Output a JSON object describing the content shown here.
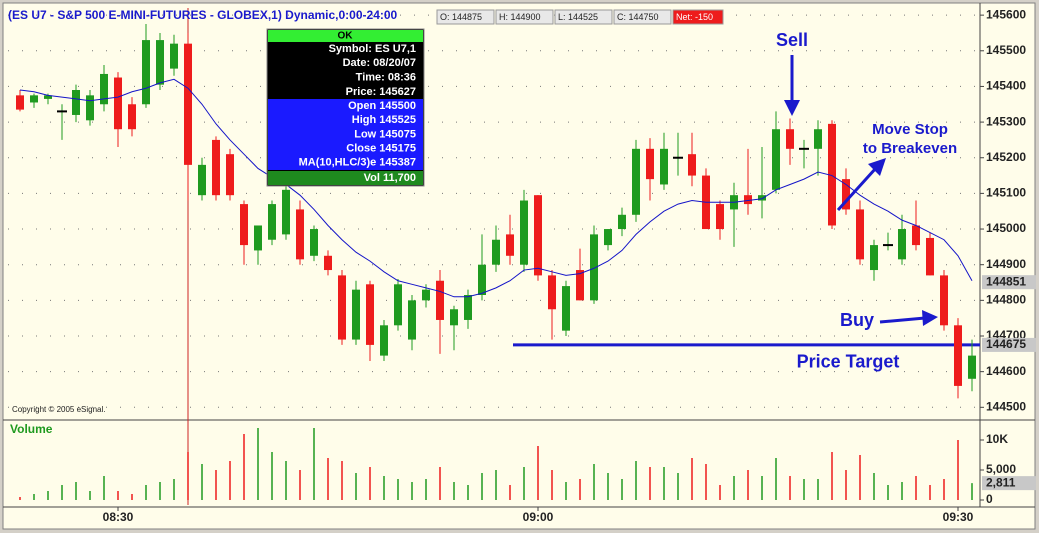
{
  "chart_data": {
    "type": "candlestick",
    "title": "(ES U7 - S&P 500 E-MINI-FUTURES - GLOBEX,1) Dynamic,0:00-24:00",
    "quote_bar": [
      "O: 144875",
      "H: 144900",
      "L: 144525",
      "C: 144750",
      "Net: -150"
    ],
    "categories": [
      null,
      null,
      null,
      null,
      null,
      null,
      null,
      "08:30",
      null,
      null,
      null,
      null,
      null,
      null,
      null,
      null,
      null,
      null,
      null,
      null,
      null,
      null,
      null,
      null,
      null,
      null,
      null,
      null,
      null,
      null,
      null,
      null,
      null,
      null,
      null,
      null,
      null,
      "09:00",
      null,
      null,
      null,
      null,
      null,
      null,
      null,
      null,
      null,
      null,
      null,
      null,
      null,
      null,
      null,
      null,
      null,
      null,
      null,
      null,
      null,
      null,
      null,
      null,
      null,
      null,
      null,
      null,
      null,
      "09:30",
      null
    ],
    "open": [
      145375,
      145355,
      145365,
      145330,
      145320,
      145305,
      145350,
      145425,
      145350,
      145350,
      145405,
      145450,
      145520,
      145095,
      145250,
      145210,
      145070,
      144940,
      144970,
      144985,
      145055,
      144925,
      144925,
      144870,
      144690,
      144845,
      144645,
      144730,
      144690,
      144800,
      144855,
      144730,
      144745,
      144815,
      144900,
      144985,
      144900,
      145095,
      144870,
      144715,
      144885,
      144800,
      144955,
      145000,
      145040,
      145225,
      145125,
      145200,
      145210,
      145150,
      145070,
      145055,
      145095,
      145080,
      145110,
      145280,
      145225,
      145225,
      145295,
      145140,
      145055,
      144885,
      144955,
      144915,
      145010,
      144975,
      144870,
      144730,
      144580
    ],
    "high": [
      145390,
      145380,
      145380,
      145350,
      145405,
      145390,
      145460,
      145440,
      145370,
      145575,
      145550,
      145545,
      145550,
      145200,
      145260,
      145225,
      145080,
      145010,
      145080,
      145125,
      145080,
      145010,
      144940,
      144885,
      144855,
      144855,
      144745,
      144860,
      144815,
      144845,
      144885,
      144785,
      144830,
      144985,
      145010,
      145040,
      145110,
      145095,
      144885,
      144855,
      144945,
      145010,
      145000,
      145060,
      145250,
      145255,
      145270,
      145270,
      145270,
      145170,
      145080,
      145130,
      145225,
      145230,
      145330,
      145310,
      145250,
      145305,
      145305,
      145170,
      145080,
      144970,
      144990,
      145040,
      145080,
      144990,
      144885,
      144750,
      144690
    ],
    "low": [
      145330,
      145340,
      145350,
      145250,
      145300,
      145290,
      145330,
      145230,
      145260,
      145340,
      145390,
      145430,
      145080,
      145080,
      145080,
      145080,
      144900,
      144900,
      144955,
      144970,
      144900,
      144910,
      144870,
      144675,
      144675,
      144630,
      144630,
      144715,
      144660,
      144780,
      144650,
      144660,
      144720,
      144800,
      144880,
      144900,
      144880,
      144855,
      144690,
      144700,
      144800,
      144790,
      144940,
      144980,
      145020,
      145080,
      145110,
      145150,
      145120,
      145010,
      144970,
      144950,
      145040,
      145030,
      145100,
      145180,
      145170,
      145150,
      145000,
      145040,
      144900,
      144855,
      144940,
      144900,
      144940,
      144870,
      144715,
      144525,
      144545
    ],
    "close": [
      145335,
      145375,
      145375,
      145330,
      145390,
      145375,
      145435,
      145280,
      145280,
      145530,
      145530,
      145520,
      145180,
      145180,
      145095,
      145095,
      144955,
      145010,
      145070,
      145110,
      144915,
      145000,
      144885,
      144690,
      144830,
      144675,
      144730,
      144845,
      144800,
      144830,
      144745,
      144775,
      144815,
      144900,
      144970,
      144925,
      145080,
      144870,
      144775,
      144840,
      144800,
      144985,
      145000,
      145040,
      145225,
      145140,
      145225,
      145200,
      145150,
      145000,
      145000,
      145095,
      145070,
      145095,
      145280,
      145225,
      145225,
      145280,
      145010,
      145055,
      144915,
      144955,
      144955,
      145000,
      144955,
      144870,
      144730,
      144560,
      144645
    ],
    "up_color": "#1f9a1f",
    "down_color": "#ee1c1c",
    "ma_color": "#1414c8",
    "ma_values": [
      145390,
      145385,
      145375,
      145370,
      145365,
      145360,
      145365,
      145370,
      145385,
      145395,
      145410,
      145420,
      145395,
      145350,
      145295,
      145250,
      145210,
      145170,
      145145,
      145125,
      145095,
      145055,
      145010,
      144970,
      144935,
      144910,
      144880,
      144855,
      144845,
      144835,
      144825,
      144810,
      144810,
      144820,
      144835,
      144855,
      144885,
      144890,
      144880,
      144870,
      144875,
      144890,
      144910,
      144940,
      144985,
      145020,
      145050,
      145070,
      145080,
      145075,
      145075,
      145075,
      145080,
      145085,
      145110,
      145125,
      145140,
      145160,
      145150,
      145125,
      145095,
      145070,
      145050,
      145025,
      145010,
      144990,
      144970,
      144925,
      144855
    ],
    "ylim": [
      144470,
      145620
    ],
    "yticks": [
      144500,
      144600,
      144700,
      144800,
      144900,
      145000,
      145100,
      145200,
      145300,
      145400,
      145500,
      145600
    ],
    "grid": true,
    "last_marker": 144851,
    "target": {
      "value": 144675,
      "label": "Price Target"
    },
    "volume": {
      "label": "Volume",
      "values": [
        500,
        1000,
        1500,
        2500,
        3000,
        1500,
        4000,
        1500,
        1000,
        2500,
        3000,
        3500,
        8000,
        6000,
        5000,
        6500,
        11000,
        12000,
        8000,
        6500,
        5000,
        12000,
        7000,
        6500,
        4500,
        5500,
        4000,
        3500,
        3000,
        3500,
        5500,
        3000,
        2500,
        4500,
        5000,
        2500,
        5500,
        9000,
        5000,
        3000,
        3500,
        6000,
        4500,
        3500,
        6500,
        5500,
        5500,
        4500,
        7000,
        6000,
        2500,
        4000,
        5000,
        4000,
        7000,
        4000,
        3500,
        3500,
        8000,
        5000,
        7500,
        4500,
        2500,
        3000,
        4000,
        2500,
        3500,
        10000,
        2811
      ],
      "ylim": [
        0,
        13000
      ],
      "yticks": [
        0,
        {
          "value": 5000,
          "label": "5,000"
        },
        {
          "value": 10000,
          "label": "10K"
        }
      ],
      "last_label": "2,811"
    },
    "annotations": {
      "sell": "Sell",
      "buy": "Buy",
      "move_stop": [
        "Move Stop",
        "to Breakeven"
      ],
      "copyright": "Copyright © 2005 eSignal."
    },
    "data_window": {
      "header": "OK",
      "black": [
        "Symbol: ES U7,1",
        "Date: 08/20/07",
        "Time: 08:36",
        "Price: 145627"
      ],
      "blue": [
        "Open 145500",
        "High 145525",
        "Low 145075",
        "Close 145175",
        "MA(10,HLC/3)e 145387"
      ],
      "footer": "Vol 11,700"
    }
  }
}
